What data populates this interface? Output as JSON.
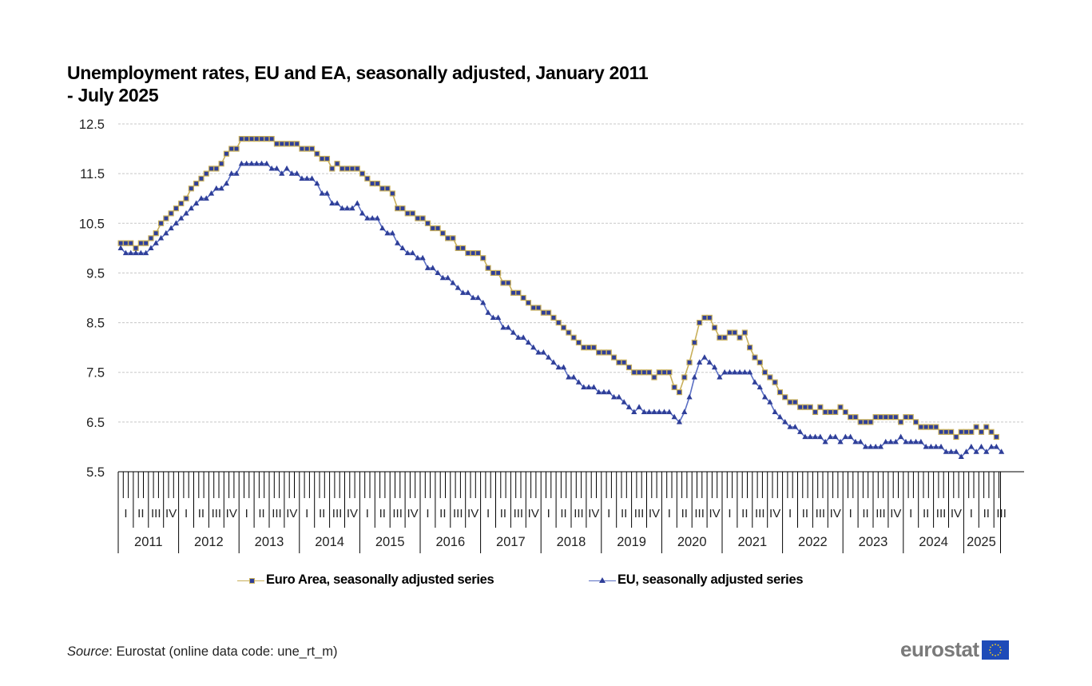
{
  "chart_data": {
    "type": "line",
    "title": "Unemployment rates, EU and EA, seasonally adjusted, January 2011 - July 2025",
    "title_lines": [
      "Unemployment rates, EU and EA, seasonally adjusted, January 2011",
      "- July 2025"
    ],
    "xlabel": "",
    "ylabel": "",
    "ylim": [
      5.5,
      12.5
    ],
    "yticks": [
      "12.5",
      "11.5",
      "10.5",
      "9.5",
      "8.5",
      "7.5",
      "6.5",
      "5.5"
    ],
    "grid": true,
    "legend_position": "bottom",
    "x_start": "2011-01",
    "x_end": "2025-07",
    "x_frequency": "monthly",
    "quarter_labels": [
      "I",
      "II",
      "III",
      "IV"
    ],
    "year_labels": [
      "2011",
      "2012",
      "2013",
      "2014",
      "2015",
      "2016",
      "2017",
      "2018",
      "2019",
      "2020",
      "2021",
      "2022",
      "2023",
      "2024",
      "2025"
    ],
    "series": [
      {
        "name": "Euro Area, seasonally adjusted series",
        "color": "#C8AF5A",
        "marker": "square",
        "marker_color": "#2F3F99",
        "values": [
          10.1,
          10.1,
          10.1,
          10.0,
          10.1,
          10.1,
          10.2,
          10.3,
          10.5,
          10.6,
          10.7,
          10.8,
          10.9,
          11.0,
          11.2,
          11.3,
          11.4,
          11.5,
          11.6,
          11.6,
          11.7,
          11.9,
          12.0,
          12.0,
          12.2,
          12.2,
          12.2,
          12.2,
          12.2,
          12.2,
          12.2,
          12.1,
          12.1,
          12.1,
          12.1,
          12.1,
          12.0,
          12.0,
          12.0,
          11.9,
          11.8,
          11.8,
          11.6,
          11.7,
          11.6,
          11.6,
          11.6,
          11.6,
          11.5,
          11.4,
          11.3,
          11.3,
          11.2,
          11.2,
          11.1,
          10.8,
          10.8,
          10.7,
          10.7,
          10.6,
          10.6,
          10.5,
          10.4,
          10.4,
          10.3,
          10.2,
          10.2,
          10.0,
          10.0,
          9.9,
          9.9,
          9.9,
          9.8,
          9.6,
          9.5,
          9.5,
          9.3,
          9.3,
          9.1,
          9.1,
          9.0,
          8.9,
          8.8,
          8.8,
          8.7,
          8.7,
          8.6,
          8.5,
          8.4,
          8.3,
          8.2,
          8.1,
          8.0,
          8.0,
          8.0,
          7.9,
          7.9,
          7.9,
          7.8,
          7.7,
          7.7,
          7.6,
          7.5,
          7.5,
          7.5,
          7.5,
          7.4,
          7.5,
          7.5,
          7.5,
          7.2,
          7.1,
          7.4,
          7.7,
          8.1,
          8.5,
          8.6,
          8.6,
          8.4,
          8.2,
          8.2,
          8.3,
          8.3,
          8.2,
          8.3,
          8.0,
          7.8,
          7.7,
          7.5,
          7.4,
          7.3,
          7.1,
          7.0,
          6.9,
          6.9,
          6.8,
          6.8,
          6.8,
          6.7,
          6.8,
          6.7,
          6.7,
          6.7,
          6.8,
          6.7,
          6.6,
          6.6,
          6.5,
          6.5,
          6.5,
          6.6,
          6.6,
          6.6,
          6.6,
          6.6,
          6.5,
          6.6,
          6.6,
          6.5,
          6.4,
          6.4,
          6.4,
          6.4,
          6.3,
          6.3,
          6.3,
          6.2,
          6.3,
          6.3,
          6.3,
          6.4,
          6.3,
          6.4,
          6.3,
          6.2
        ]
      },
      {
        "name": "EU, seasonally adjusted series",
        "color": "#5B6FC4",
        "marker": "triangle",
        "marker_color": "#2F3F99",
        "values": [
          10.0,
          9.9,
          9.9,
          9.9,
          9.9,
          9.9,
          10.0,
          10.1,
          10.2,
          10.3,
          10.4,
          10.5,
          10.6,
          10.7,
          10.8,
          10.9,
          11.0,
          11.0,
          11.1,
          11.2,
          11.2,
          11.3,
          11.5,
          11.5,
          11.7,
          11.7,
          11.7,
          11.7,
          11.7,
          11.7,
          11.6,
          11.6,
          11.5,
          11.6,
          11.5,
          11.5,
          11.4,
          11.4,
          11.4,
          11.3,
          11.1,
          11.1,
          10.9,
          10.9,
          10.8,
          10.8,
          10.8,
          10.9,
          10.7,
          10.6,
          10.6,
          10.6,
          10.4,
          10.3,
          10.3,
          10.1,
          10.0,
          9.9,
          9.9,
          9.8,
          9.8,
          9.6,
          9.6,
          9.5,
          9.4,
          9.4,
          9.3,
          9.2,
          9.1,
          9.1,
          9.0,
          9.0,
          8.9,
          8.7,
          8.6,
          8.6,
          8.4,
          8.4,
          8.3,
          8.2,
          8.2,
          8.1,
          8.0,
          7.9,
          7.9,
          7.8,
          7.7,
          7.6,
          7.6,
          7.4,
          7.4,
          7.3,
          7.2,
          7.2,
          7.2,
          7.1,
          7.1,
          7.1,
          7.0,
          7.0,
          6.9,
          6.8,
          6.7,
          6.8,
          6.7,
          6.7,
          6.7,
          6.7,
          6.7,
          6.7,
          6.6,
          6.5,
          6.7,
          7.0,
          7.4,
          7.7,
          7.8,
          7.7,
          7.6,
          7.4,
          7.5,
          7.5,
          7.5,
          7.5,
          7.5,
          7.5,
          7.3,
          7.2,
          7.0,
          6.9,
          6.7,
          6.6,
          6.5,
          6.4,
          6.4,
          6.3,
          6.2,
          6.2,
          6.2,
          6.2,
          6.1,
          6.2,
          6.2,
          6.1,
          6.2,
          6.2,
          6.1,
          6.1,
          6.0,
          6.0,
          6.0,
          6.0,
          6.1,
          6.1,
          6.1,
          6.2,
          6.1,
          6.1,
          6.1,
          6.1,
          6.0,
          6.0,
          6.0,
          6.0,
          5.9,
          5.9,
          5.9,
          5.8,
          5.9,
          6.0,
          5.9,
          6.0,
          5.9,
          6.0,
          6.0,
          5.9
        ]
      }
    ]
  },
  "footer": {
    "source_label": "Source",
    "source_text": ": Eurostat (online data code: une_rt_m)",
    "logo_text": "eurostat",
    "logo_flag_icon": "eu-flag-icon"
  }
}
